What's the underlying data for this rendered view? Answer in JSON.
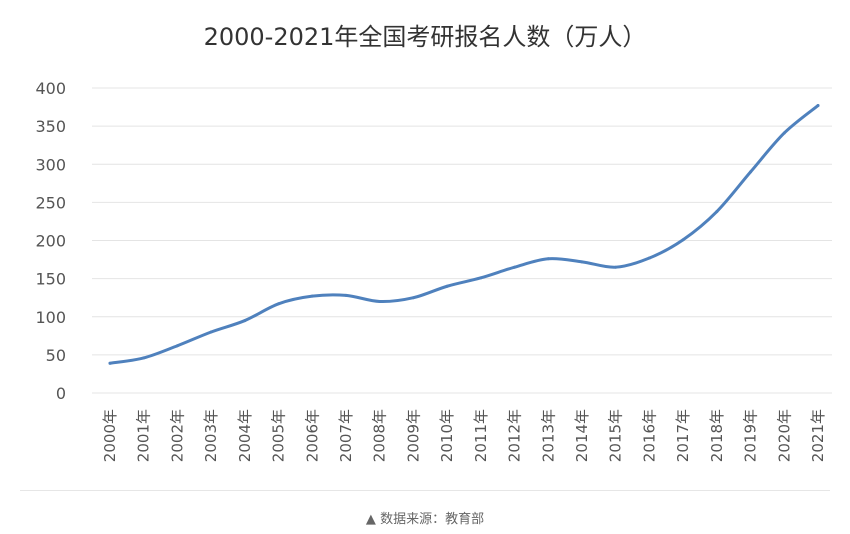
{
  "chart_data": {
    "type": "line",
    "title": "2000-2021年全国考研报名人数（万人）",
    "xlabel": "",
    "ylabel": "",
    "categories": [
      "2000年",
      "2001年",
      "2002年",
      "2003年",
      "2004年",
      "2005年",
      "2006年",
      "2007年",
      "2008年",
      "2009年",
      "2010年",
      "2011年",
      "2012年",
      "2013年",
      "2014年",
      "2015年",
      "2016年",
      "2017年",
      "2018年",
      "2019年",
      "2020年",
      "2021年"
    ],
    "series": [
      {
        "values": [
          39,
          46,
          62,
          80,
          95,
          117,
          127,
          128,
          120,
          125,
          140,
          151,
          165,
          176,
          172,
          165,
          177,
          201,
          238,
          290,
          341,
          377
        ]
      }
    ],
    "ylim": [
      0,
      400
    ],
    "yticks": [
      0,
      50,
      100,
      150,
      200,
      250,
      300,
      350,
      400
    ],
    "grid": true,
    "line_color": "#4f81bd"
  },
  "source": {
    "marker": "▲",
    "text": "数据来源：教育部"
  }
}
